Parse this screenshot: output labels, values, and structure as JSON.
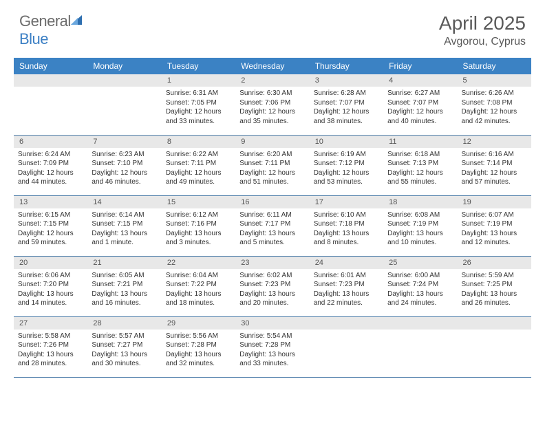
{
  "brand": {
    "part1": "General",
    "part2": "Blue"
  },
  "title": "April 2025",
  "location": "Avgorou, Cyprus",
  "colors": {
    "header_bg": "#3b82c4",
    "header_text": "#ffffff",
    "daynum_bg": "#e8e8e8",
    "border": "#4a7ba8",
    "text": "#333333",
    "logo_gray": "#6b6b6b",
    "logo_blue": "#3b7fc4"
  },
  "weekdays": [
    "Sunday",
    "Monday",
    "Tuesday",
    "Wednesday",
    "Thursday",
    "Friday",
    "Saturday"
  ],
  "layout": {
    "cols": 7,
    "rows": 5,
    "first_weekday_index": 2,
    "days_in_month": 30
  },
  "days": {
    "1": {
      "sunrise": "Sunrise: 6:31 AM",
      "sunset": "Sunset: 7:05 PM",
      "daylight": "Daylight: 12 hours and 33 minutes."
    },
    "2": {
      "sunrise": "Sunrise: 6:30 AM",
      "sunset": "Sunset: 7:06 PM",
      "daylight": "Daylight: 12 hours and 35 minutes."
    },
    "3": {
      "sunrise": "Sunrise: 6:28 AM",
      "sunset": "Sunset: 7:07 PM",
      "daylight": "Daylight: 12 hours and 38 minutes."
    },
    "4": {
      "sunrise": "Sunrise: 6:27 AM",
      "sunset": "Sunset: 7:07 PM",
      "daylight": "Daylight: 12 hours and 40 minutes."
    },
    "5": {
      "sunrise": "Sunrise: 6:26 AM",
      "sunset": "Sunset: 7:08 PM",
      "daylight": "Daylight: 12 hours and 42 minutes."
    },
    "6": {
      "sunrise": "Sunrise: 6:24 AM",
      "sunset": "Sunset: 7:09 PM",
      "daylight": "Daylight: 12 hours and 44 minutes."
    },
    "7": {
      "sunrise": "Sunrise: 6:23 AM",
      "sunset": "Sunset: 7:10 PM",
      "daylight": "Daylight: 12 hours and 46 minutes."
    },
    "8": {
      "sunrise": "Sunrise: 6:22 AM",
      "sunset": "Sunset: 7:11 PM",
      "daylight": "Daylight: 12 hours and 49 minutes."
    },
    "9": {
      "sunrise": "Sunrise: 6:20 AM",
      "sunset": "Sunset: 7:11 PM",
      "daylight": "Daylight: 12 hours and 51 minutes."
    },
    "10": {
      "sunrise": "Sunrise: 6:19 AM",
      "sunset": "Sunset: 7:12 PM",
      "daylight": "Daylight: 12 hours and 53 minutes."
    },
    "11": {
      "sunrise": "Sunrise: 6:18 AM",
      "sunset": "Sunset: 7:13 PM",
      "daylight": "Daylight: 12 hours and 55 minutes."
    },
    "12": {
      "sunrise": "Sunrise: 6:16 AM",
      "sunset": "Sunset: 7:14 PM",
      "daylight": "Daylight: 12 hours and 57 minutes."
    },
    "13": {
      "sunrise": "Sunrise: 6:15 AM",
      "sunset": "Sunset: 7:15 PM",
      "daylight": "Daylight: 12 hours and 59 minutes."
    },
    "14": {
      "sunrise": "Sunrise: 6:14 AM",
      "sunset": "Sunset: 7:15 PM",
      "daylight": "Daylight: 13 hours and 1 minute."
    },
    "15": {
      "sunrise": "Sunrise: 6:12 AM",
      "sunset": "Sunset: 7:16 PM",
      "daylight": "Daylight: 13 hours and 3 minutes."
    },
    "16": {
      "sunrise": "Sunrise: 6:11 AM",
      "sunset": "Sunset: 7:17 PM",
      "daylight": "Daylight: 13 hours and 5 minutes."
    },
    "17": {
      "sunrise": "Sunrise: 6:10 AM",
      "sunset": "Sunset: 7:18 PM",
      "daylight": "Daylight: 13 hours and 8 minutes."
    },
    "18": {
      "sunrise": "Sunrise: 6:08 AM",
      "sunset": "Sunset: 7:19 PM",
      "daylight": "Daylight: 13 hours and 10 minutes."
    },
    "19": {
      "sunrise": "Sunrise: 6:07 AM",
      "sunset": "Sunset: 7:19 PM",
      "daylight": "Daylight: 13 hours and 12 minutes."
    },
    "20": {
      "sunrise": "Sunrise: 6:06 AM",
      "sunset": "Sunset: 7:20 PM",
      "daylight": "Daylight: 13 hours and 14 minutes."
    },
    "21": {
      "sunrise": "Sunrise: 6:05 AM",
      "sunset": "Sunset: 7:21 PM",
      "daylight": "Daylight: 13 hours and 16 minutes."
    },
    "22": {
      "sunrise": "Sunrise: 6:04 AM",
      "sunset": "Sunset: 7:22 PM",
      "daylight": "Daylight: 13 hours and 18 minutes."
    },
    "23": {
      "sunrise": "Sunrise: 6:02 AM",
      "sunset": "Sunset: 7:23 PM",
      "daylight": "Daylight: 13 hours and 20 minutes."
    },
    "24": {
      "sunrise": "Sunrise: 6:01 AM",
      "sunset": "Sunset: 7:23 PM",
      "daylight": "Daylight: 13 hours and 22 minutes."
    },
    "25": {
      "sunrise": "Sunrise: 6:00 AM",
      "sunset": "Sunset: 7:24 PM",
      "daylight": "Daylight: 13 hours and 24 minutes."
    },
    "26": {
      "sunrise": "Sunrise: 5:59 AM",
      "sunset": "Sunset: 7:25 PM",
      "daylight": "Daylight: 13 hours and 26 minutes."
    },
    "27": {
      "sunrise": "Sunrise: 5:58 AM",
      "sunset": "Sunset: 7:26 PM",
      "daylight": "Daylight: 13 hours and 28 minutes."
    },
    "28": {
      "sunrise": "Sunrise: 5:57 AM",
      "sunset": "Sunset: 7:27 PM",
      "daylight": "Daylight: 13 hours and 30 minutes."
    },
    "29": {
      "sunrise": "Sunrise: 5:56 AM",
      "sunset": "Sunset: 7:28 PM",
      "daylight": "Daylight: 13 hours and 32 minutes."
    },
    "30": {
      "sunrise": "Sunrise: 5:54 AM",
      "sunset": "Sunset: 7:28 PM",
      "daylight": "Daylight: 13 hours and 33 minutes."
    }
  }
}
